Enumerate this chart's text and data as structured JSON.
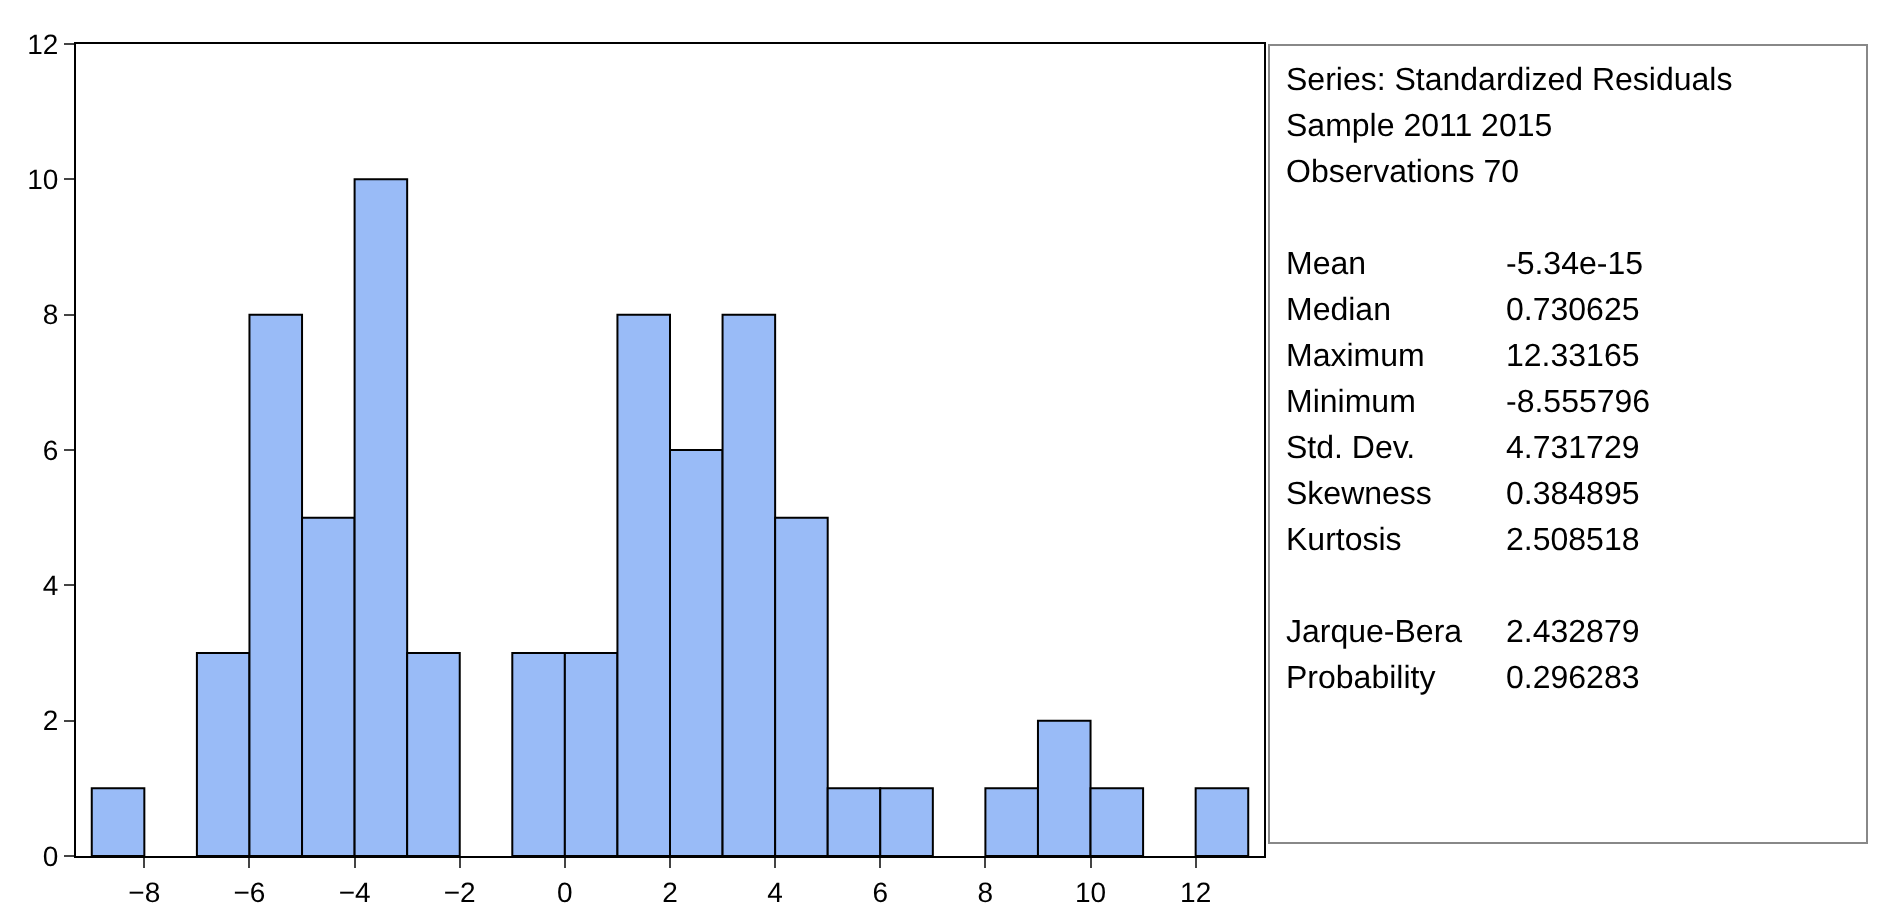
{
  "chart_data": {
    "type": "histogram",
    "bins": [
      -9,
      -8,
      -7,
      -6,
      -5,
      -4,
      -3,
      -2,
      -1,
      0,
      1,
      2,
      3,
      4,
      5,
      6,
      7,
      8,
      9,
      10,
      11,
      12,
      13
    ],
    "values": [
      1,
      0,
      3,
      8,
      5,
      10,
      3,
      0,
      3,
      3,
      8,
      6,
      8,
      5,
      1,
      1,
      0,
      1,
      2,
      1,
      0,
      1
    ],
    "color": "#99bbf7",
    "xlim": [
      -9.3,
      13.3
    ],
    "xticks": [
      -8,
      -6,
      -4,
      -2,
      0,
      2,
      4,
      6,
      8,
      10,
      12
    ],
    "ylim": [
      0,
      12
    ],
    "yticks": [
      0,
      2,
      4,
      6,
      8,
      10,
      12
    ],
    "annotations": [
      "Series: Standardized Residuals",
      "Sample 2011 2015",
      "Observations 70",
      "Mean\t-5.34e-15",
      "Median\t0.730625",
      "Maximum\t12.33165",
      "Minimum\t-8.555796",
      "Std. Dev.\t4.731729",
      "Skewness\t0.384895",
      "Kurtosis\t2.508518",
      "Jarque-Bera\t2.432879",
      "Probability\t0.296283"
    ]
  }
}
